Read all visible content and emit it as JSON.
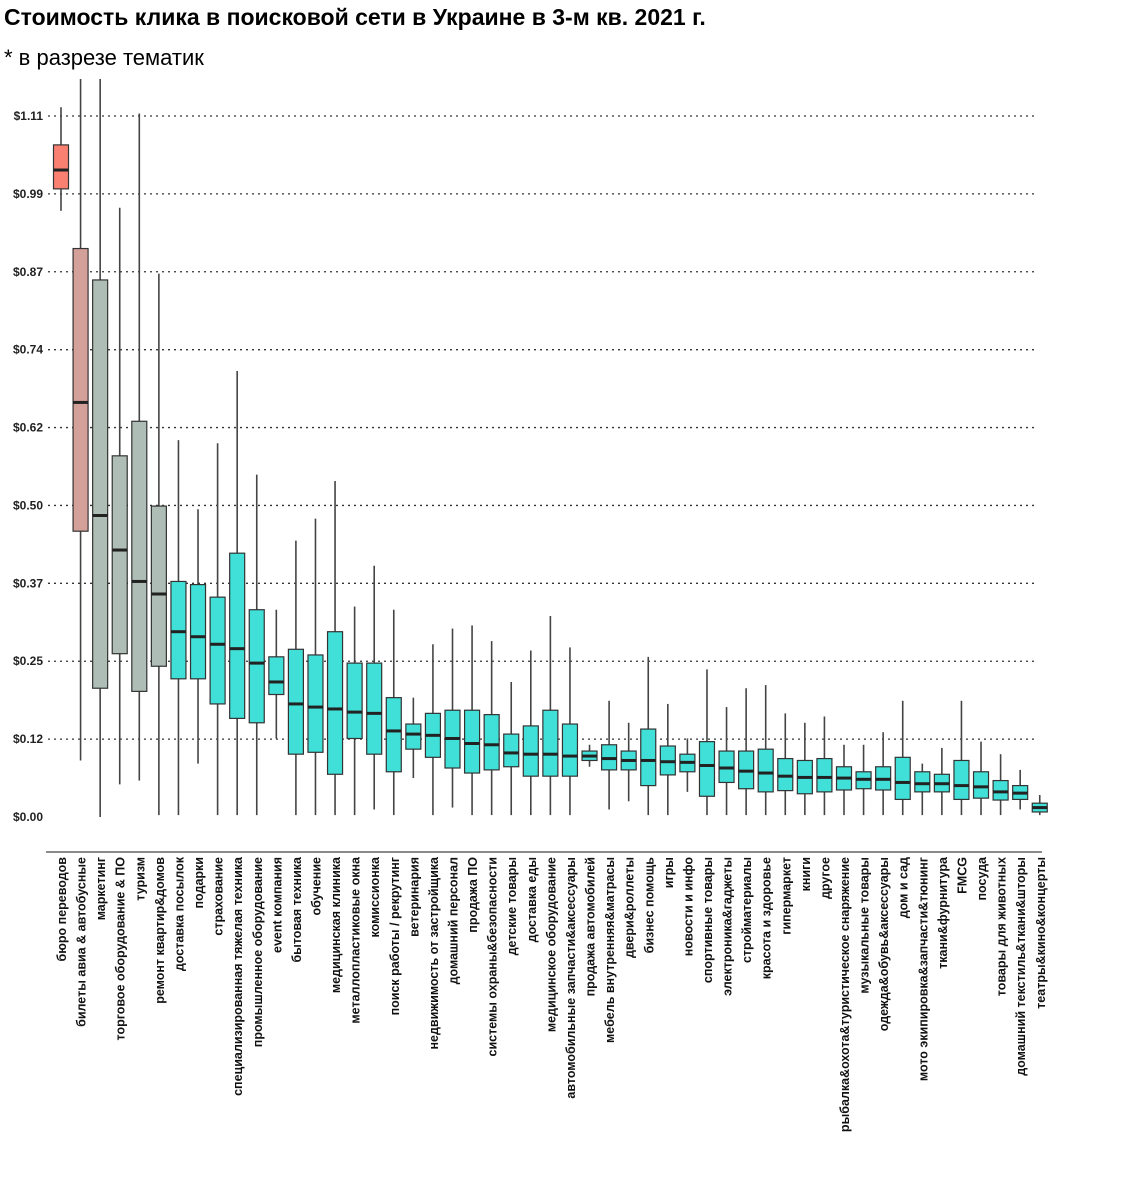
{
  "title": "Стоимость клика в поисковой сети в Украине в 3-м кв. 2021 г.",
  "subtitle": "* в разрезе тематик",
  "chart_data": {
    "type": "boxplot",
    "title": "Стоимость клика в поисковой сети в Украине в 3-м кв. 2021 г.",
    "subtitle": "* в разрезе тематик",
    "xlabel": "",
    "ylabel": "",
    "ylim": [
      0,
      1.15
    ],
    "y_ticks": [
      {
        "value": 0.0,
        "label": "$0.00"
      },
      {
        "value": 0.124,
        "label": "$0.12"
      },
      {
        "value": 0.248,
        "label": "$0.25"
      },
      {
        "value": 0.372,
        "label": "$0.37"
      },
      {
        "value": 0.496,
        "label": "$0.50"
      },
      {
        "value": 0.62,
        "label": "$0.62"
      },
      {
        "value": 0.744,
        "label": "$0.74"
      },
      {
        "value": 0.868,
        "label": "$0.87"
      },
      {
        "value": 0.992,
        "label": "$0.99"
      },
      {
        "value": 1.116,
        "label": "$1.11"
      }
    ],
    "grid": "horizontal dotted",
    "colors": {
      "top": "#fa8072",
      "high": "#d4a09a",
      "mid": "#aebdb6",
      "normal": "#40e0d8"
    },
    "categories": [
      {
        "name": "бюро переводов",
        "color": "#fa8072",
        "min": 0.965,
        "q1": 1.0,
        "median": 1.03,
        "q3": 1.07,
        "max": 1.13
      },
      {
        "name": "билеты авиа & автобусные",
        "color": "#d4a09a",
        "min": 0.09,
        "q1": 0.455,
        "median": 0.66,
        "q3": 0.905,
        "max": 1.175
      },
      {
        "name": "маркетинг",
        "color": "#aebdb6",
        "min": 0.0,
        "q1": 0.205,
        "median": 0.48,
        "q3": 0.855,
        "max": 1.175
      },
      {
        "name": "торговое оборудование & ПО",
        "color": "#aebdb6",
        "min": 0.052,
        "q1": 0.26,
        "median": 0.425,
        "q3": 0.575,
        "max": 0.97
      },
      {
        "name": "туризм",
        "color": "#aebdb6",
        "min": 0.058,
        "q1": 0.2,
        "median": 0.375,
        "q3": 0.63,
        "max": 1.12
      },
      {
        "name": "ремонт квартир&домов",
        "color": "#aebdb6",
        "min": 0.003,
        "q1": 0.24,
        "median": 0.355,
        "q3": 0.495,
        "max": 0.865
      },
      {
        "name": "доставка посылок",
        "color": "#40e0d8",
        "min": 0.003,
        "q1": 0.22,
        "median": 0.295,
        "q3": 0.375,
        "max": 0.6
      },
      {
        "name": "подарки",
        "color": "#40e0d8",
        "min": 0.085,
        "q1": 0.22,
        "median": 0.287,
        "q3": 0.37,
        "max": 0.49
      },
      {
        "name": "страхование",
        "color": "#40e0d8",
        "min": 0.003,
        "q1": 0.18,
        "median": 0.275,
        "q3": 0.35,
        "max": 0.595
      },
      {
        "name": "специализированная тяжелая техника",
        "color": "#40e0d8",
        "min": 0.003,
        "q1": 0.157,
        "median": 0.268,
        "q3": 0.42,
        "max": 0.71
      },
      {
        "name": "промышленное оборудование",
        "color": "#40e0d8",
        "min": 0.003,
        "q1": 0.15,
        "median": 0.245,
        "q3": 0.33,
        "max": 0.545
      },
      {
        "name": "event компания",
        "color": "#40e0d8",
        "min": 0.125,
        "q1": 0.195,
        "median": 0.215,
        "q3": 0.255,
        "max": 0.33
      },
      {
        "name": "бытовая техника",
        "color": "#40e0d8",
        "min": 0.003,
        "q1": 0.1,
        "median": 0.18,
        "q3": 0.267,
        "max": 0.44
      },
      {
        "name": "обучение",
        "color": "#40e0d8",
        "min": 0.003,
        "q1": 0.103,
        "median": 0.175,
        "q3": 0.258,
        "max": 0.475
      },
      {
        "name": "медицинская клиника",
        "color": "#40e0d8",
        "min": 0.003,
        "q1": 0.068,
        "median": 0.172,
        "q3": 0.295,
        "max": 0.535
      },
      {
        "name": "металлопластиковые окна",
        "color": "#40e0d8",
        "min": 0.003,
        "q1": 0.125,
        "median": 0.167,
        "q3": 0.245,
        "max": 0.335
      },
      {
        "name": "комиссионка",
        "color": "#40e0d8",
        "min": 0.012,
        "q1": 0.1,
        "median": 0.165,
        "q3": 0.245,
        "max": 0.4
      },
      {
        "name": "поиск работы / рекрутинг",
        "color": "#40e0d8",
        "min": 0.003,
        "q1": 0.072,
        "median": 0.137,
        "q3": 0.19,
        "max": 0.33
      },
      {
        "name": "ветеринария",
        "color": "#40e0d8",
        "min": 0.062,
        "q1": 0.108,
        "median": 0.132,
        "q3": 0.148,
        "max": 0.19
      },
      {
        "name": "недвижимость от застройщика",
        "color": "#40e0d8",
        "min": 0.003,
        "q1": 0.095,
        "median": 0.13,
        "q3": 0.165,
        "max": 0.275
      },
      {
        "name": "домашний персонал",
        "color": "#40e0d8",
        "min": 0.015,
        "q1": 0.078,
        "median": 0.125,
        "q3": 0.17,
        "max": 0.3
      },
      {
        "name": "продажа ПО",
        "color": "#40e0d8",
        "min": 0.003,
        "q1": 0.07,
        "median": 0.117,
        "q3": 0.17,
        "max": 0.305
      },
      {
        "name": "системы охраны&безопасности",
        "color": "#40e0d8",
        "min": 0.003,
        "q1": 0.075,
        "median": 0.115,
        "q3": 0.163,
        "max": 0.28
      },
      {
        "name": "детские товары",
        "color": "#40e0d8",
        "min": 0.003,
        "q1": 0.08,
        "median": 0.102,
        "q3": 0.132,
        "max": 0.215
      },
      {
        "name": "доставка еды",
        "color": "#40e0d8",
        "min": 0.003,
        "q1": 0.065,
        "median": 0.1,
        "q3": 0.145,
        "max": 0.265
      },
      {
        "name": "медицинское оборудование",
        "color": "#40e0d8",
        "min": 0.003,
        "q1": 0.065,
        "median": 0.1,
        "q3": 0.17,
        "max": 0.32
      },
      {
        "name": "автомобильные запчасти&аксессуары",
        "color": "#40e0d8",
        "min": 0.003,
        "q1": 0.065,
        "median": 0.097,
        "q3": 0.148,
        "max": 0.27
      },
      {
        "name": "продажа автомобилей",
        "color": "#40e0d8",
        "min": 0.08,
        "q1": 0.09,
        "median": 0.097,
        "q3": 0.105,
        "max": 0.115
      },
      {
        "name": "мебель внутренняя&матрасы",
        "color": "#40e0d8",
        "min": 0.012,
        "q1": 0.075,
        "median": 0.093,
        "q3": 0.115,
        "max": 0.185
      },
      {
        "name": "двери&роллеты",
        "color": "#40e0d8",
        "min": 0.025,
        "q1": 0.075,
        "median": 0.09,
        "q3": 0.105,
        "max": 0.15
      },
      {
        "name": "бизнес помощь",
        "color": "#40e0d8",
        "min": 0.003,
        "q1": 0.05,
        "median": 0.09,
        "q3": 0.14,
        "max": 0.255
      },
      {
        "name": "игры",
        "color": "#40e0d8",
        "min": 0.003,
        "q1": 0.067,
        "median": 0.088,
        "q3": 0.113,
        "max": 0.18
      },
      {
        "name": "новости и инфо",
        "color": "#40e0d8",
        "min": 0.04,
        "q1": 0.072,
        "median": 0.087,
        "q3": 0.1,
        "max": 0.125
      },
      {
        "name": "спортивные товары",
        "color": "#40e0d8",
        "min": 0.003,
        "q1": 0.033,
        "median": 0.082,
        "q3": 0.12,
        "max": 0.235
      },
      {
        "name": "электроника&гаджеты",
        "color": "#40e0d8",
        "min": 0.003,
        "q1": 0.055,
        "median": 0.078,
        "q3": 0.105,
        "max": 0.175
      },
      {
        "name": "стройматериалы",
        "color": "#40e0d8",
        "min": 0.003,
        "q1": 0.045,
        "median": 0.073,
        "q3": 0.105,
        "max": 0.205
      },
      {
        "name": "красота и здоровье",
        "color": "#40e0d8",
        "min": 0.003,
        "q1": 0.04,
        "median": 0.07,
        "q3": 0.108,
        "max": 0.21
      },
      {
        "name": "гипермаркет",
        "color": "#40e0d8",
        "min": 0.003,
        "q1": 0.042,
        "median": 0.065,
        "q3": 0.093,
        "max": 0.165
      },
      {
        "name": "книги",
        "color": "#40e0d8",
        "min": 0.003,
        "q1": 0.037,
        "median": 0.063,
        "q3": 0.09,
        "max": 0.15
      },
      {
        "name": "другое",
        "color": "#40e0d8",
        "min": 0.003,
        "q1": 0.04,
        "median": 0.063,
        "q3": 0.093,
        "max": 0.16
      },
      {
        "name": "рыбалка&охота&туристическое снаряжение",
        "color": "#40e0d8",
        "min": 0.003,
        "q1": 0.043,
        "median": 0.062,
        "q3": 0.08,
        "max": 0.115
      },
      {
        "name": "музыкальные товары",
        "color": "#40e0d8",
        "min": 0.003,
        "q1": 0.045,
        "median": 0.06,
        "q3": 0.072,
        "max": 0.115
      },
      {
        "name": "одежда&обувь&аксессуары",
        "color": "#40e0d8",
        "min": 0.003,
        "q1": 0.043,
        "median": 0.06,
        "q3": 0.08,
        "max": 0.135
      },
      {
        "name": "дом и сад",
        "color": "#40e0d8",
        "min": 0.003,
        "q1": 0.028,
        "median": 0.055,
        "q3": 0.095,
        "max": 0.185
      },
      {
        "name": "мото экипировка&запчасти&тюнинг",
        "color": "#40e0d8",
        "min": 0.003,
        "q1": 0.04,
        "median": 0.053,
        "q3": 0.072,
        "max": 0.085
      },
      {
        "name": "ткани&фурнитура",
        "color": "#40e0d8",
        "min": 0.003,
        "q1": 0.04,
        "median": 0.053,
        "q3": 0.068,
        "max": 0.11
      },
      {
        "name": "FMCG",
        "color": "#40e0d8",
        "min": 0.003,
        "q1": 0.028,
        "median": 0.05,
        "q3": 0.09,
        "max": 0.185
      },
      {
        "name": "посуда",
        "color": "#40e0d8",
        "min": 0.003,
        "q1": 0.03,
        "median": 0.048,
        "q3": 0.072,
        "max": 0.12
      },
      {
        "name": "товары для животных",
        "color": "#40e0d8",
        "min": 0.003,
        "q1": 0.027,
        "median": 0.04,
        "q3": 0.058,
        "max": 0.1
      },
      {
        "name": "домашний текстиль&ткани&шторы",
        "color": "#40e0d8",
        "min": 0.012,
        "q1": 0.028,
        "median": 0.038,
        "q3": 0.05,
        "max": 0.075
      },
      {
        "name": "театры&кино&концерты",
        "color": "#40e0d8",
        "min": 0.003,
        "q1": 0.008,
        "median": 0.015,
        "q3": 0.022,
        "max": 0.035
      }
    ]
  }
}
